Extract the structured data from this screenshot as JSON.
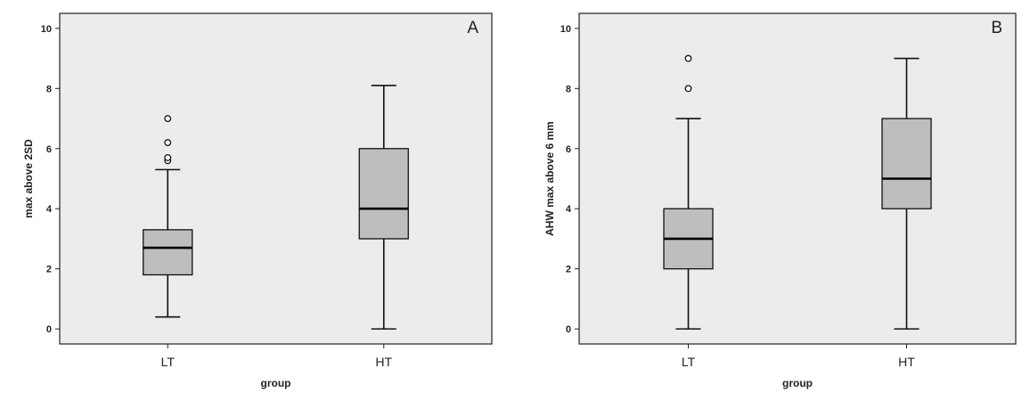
{
  "chart_data": [
    {
      "type": "boxplot",
      "panel_label": "A",
      "xlabel": "group",
      "ylabel": "max above 2SD",
      "categories": [
        "LT",
        "HT"
      ],
      "ylim": [
        -0.5,
        10.5
      ],
      "yticks": [
        0,
        2,
        4,
        6,
        8,
        10
      ],
      "grid": false,
      "boxes": [
        {
          "category": "LT",
          "whisker_low": 0.4,
          "q1": 1.8,
          "median": 2.7,
          "q3": 3.3,
          "whisker_high": 5.3,
          "outliers": [
            5.6,
            5.7,
            6.2,
            7.0
          ]
        },
        {
          "category": "HT",
          "whisker_low": 0.0,
          "q1": 3.0,
          "median": 4.0,
          "q3": 6.0,
          "whisker_high": 8.1,
          "outliers": []
        }
      ]
    },
    {
      "type": "boxplot",
      "panel_label": "B",
      "xlabel": "group",
      "ylabel": "AHW max above 6 mm",
      "categories": [
        "LT",
        "HT"
      ],
      "ylim": [
        -0.5,
        10.5
      ],
      "yticks": [
        0,
        2,
        4,
        6,
        8,
        10
      ],
      "grid": false,
      "boxes": [
        {
          "category": "LT",
          "whisker_low": 0.0,
          "q1": 2.0,
          "median": 3.0,
          "q3": 4.0,
          "whisker_high": 7.0,
          "outliers": [
            8.0,
            9.0
          ]
        },
        {
          "category": "HT",
          "whisker_low": 0.0,
          "q1": 4.0,
          "median": 5.0,
          "q3": 7.0,
          "whisker_high": 9.0,
          "outliers": []
        }
      ]
    }
  ],
  "colors": {
    "plot_background": "#ececec",
    "box_fill": "#bebebe",
    "line": "#111111"
  }
}
